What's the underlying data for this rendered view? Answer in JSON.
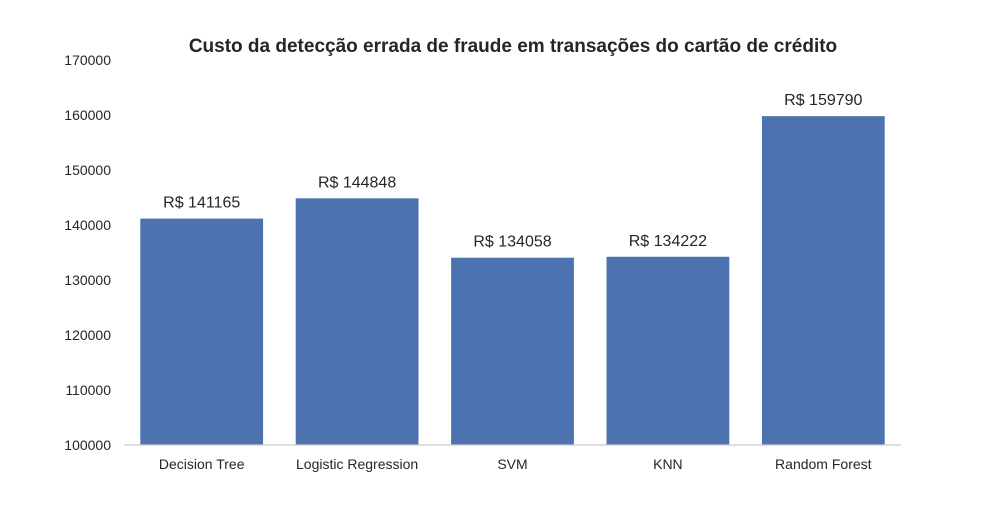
{
  "chart_data": {
    "type": "bar",
    "title": "Custo da detecção errada de fraude em transações do cartão de crédito",
    "xlabel": "",
    "ylabel": "",
    "categories": [
      "Decision Tree",
      "Logistic Regression",
      "SVM",
      "KNN",
      "Random Forest"
    ],
    "values": [
      141165,
      144848,
      134058,
      134222,
      159790
    ],
    "data_labels": [
      "R$ 141165",
      "R$ 144848",
      "R$ 134058",
      "R$ 134222",
      "R$ 159790"
    ],
    "ylim": [
      100000,
      170000
    ],
    "yticks": [
      100000,
      110000,
      120000,
      130000,
      140000,
      150000,
      160000,
      170000
    ],
    "ytick_labels": [
      "100000",
      "110000",
      "120000",
      "130000",
      "140000",
      "150000",
      "160000",
      "170000"
    ],
    "grid": false,
    "legend": "none",
    "bar_color": "#4c72b0",
    "axis_color": "#cccccc"
  }
}
